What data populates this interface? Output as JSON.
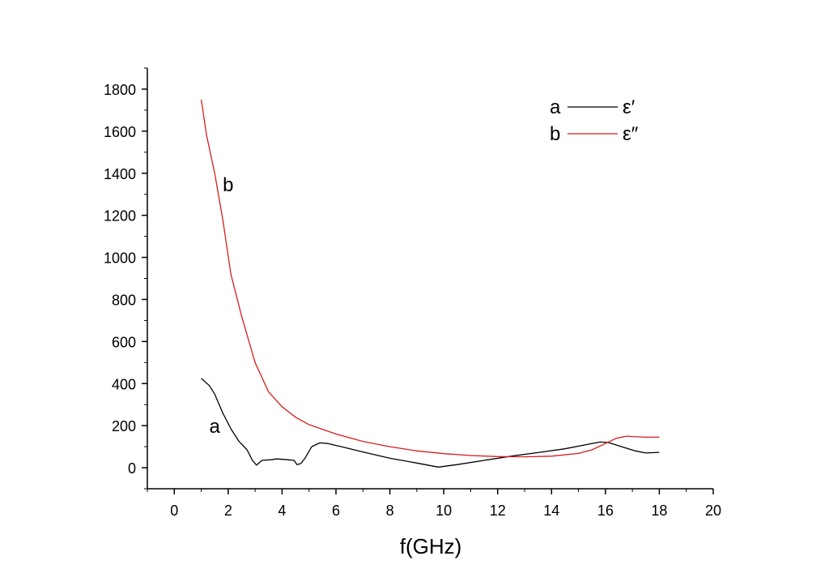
{
  "chart_data": {
    "type": "line",
    "xlabel": "f(GHz)",
    "ylabel": "",
    "xlim": [
      -1,
      20
    ],
    "ylim": [
      -100,
      1900
    ],
    "x_ticks": [
      0,
      2,
      4,
      6,
      8,
      10,
      12,
      14,
      16,
      18,
      20
    ],
    "y_ticks": [
      0,
      200,
      400,
      600,
      800,
      1000,
      1200,
      1400,
      1600,
      1800
    ],
    "x_tick_labels": [
      "0",
      "2",
      "4",
      "6",
      "8",
      "10",
      "12",
      "14",
      "16",
      "18",
      "20"
    ],
    "y_tick_labels": [
      "0",
      "200",
      "400",
      "600",
      "800",
      "1000",
      "1200",
      "1400",
      "1600",
      "1800"
    ],
    "grid": false,
    "legend_position": "top-right",
    "series": [
      {
        "name": "ε′",
        "key": "a",
        "color": "#000000",
        "points": [
          [
            1.0,
            425
          ],
          [
            1.3,
            390
          ],
          [
            1.5,
            350
          ],
          [
            1.8,
            260
          ],
          [
            2.1,
            185
          ],
          [
            2.4,
            125
          ],
          [
            2.7,
            85
          ],
          [
            2.9,
            35
          ],
          [
            3.05,
            12
          ],
          [
            3.25,
            35
          ],
          [
            3.6,
            38
          ],
          [
            3.8,
            42
          ],
          [
            4.2,
            38
          ],
          [
            4.45,
            35
          ],
          [
            4.55,
            15
          ],
          [
            4.7,
            20
          ],
          [
            4.85,
            45
          ],
          [
            5.1,
            100
          ],
          [
            5.4,
            118
          ],
          [
            5.7,
            115
          ],
          [
            6.2,
            100
          ],
          [
            7.0,
            75
          ],
          [
            8.0,
            45
          ],
          [
            9.0,
            22
          ],
          [
            9.8,
            3
          ],
          [
            10.5,
            15
          ],
          [
            11.5,
            35
          ],
          [
            12.5,
            55
          ],
          [
            13.5,
            72
          ],
          [
            14.5,
            90
          ],
          [
            15.3,
            110
          ],
          [
            15.8,
            122
          ],
          [
            16.1,
            120
          ],
          [
            16.6,
            100
          ],
          [
            17.1,
            80
          ],
          [
            17.5,
            70
          ],
          [
            18.0,
            73
          ]
        ]
      },
      {
        "name": "ε″",
        "key": "b",
        "color": "#d61c1c",
        "points": [
          [
            1.0,
            1750
          ],
          [
            1.2,
            1580
          ],
          [
            1.5,
            1400
          ],
          [
            1.8,
            1180
          ],
          [
            2.1,
            920
          ],
          [
            2.5,
            720
          ],
          [
            3.0,
            500
          ],
          [
            3.5,
            360
          ],
          [
            4.0,
            290
          ],
          [
            4.5,
            240
          ],
          [
            5.0,
            205
          ],
          [
            6.0,
            160
          ],
          [
            7.0,
            125
          ],
          [
            8.0,
            100
          ],
          [
            9.0,
            80
          ],
          [
            10.0,
            67
          ],
          [
            11.0,
            58
          ],
          [
            12.0,
            53
          ],
          [
            13.0,
            52
          ],
          [
            14.0,
            55
          ],
          [
            15.0,
            68
          ],
          [
            15.5,
            85
          ],
          [
            16.0,
            115
          ],
          [
            16.4,
            140
          ],
          [
            16.8,
            150
          ],
          [
            17.0,
            148
          ],
          [
            17.5,
            145
          ],
          [
            18.0,
            145
          ]
        ]
      }
    ],
    "annotations": [
      {
        "text": "a",
        "x": 1.5,
        "y": 165
      },
      {
        "text": "b",
        "x": 2.0,
        "y": 1315
      }
    ]
  }
}
